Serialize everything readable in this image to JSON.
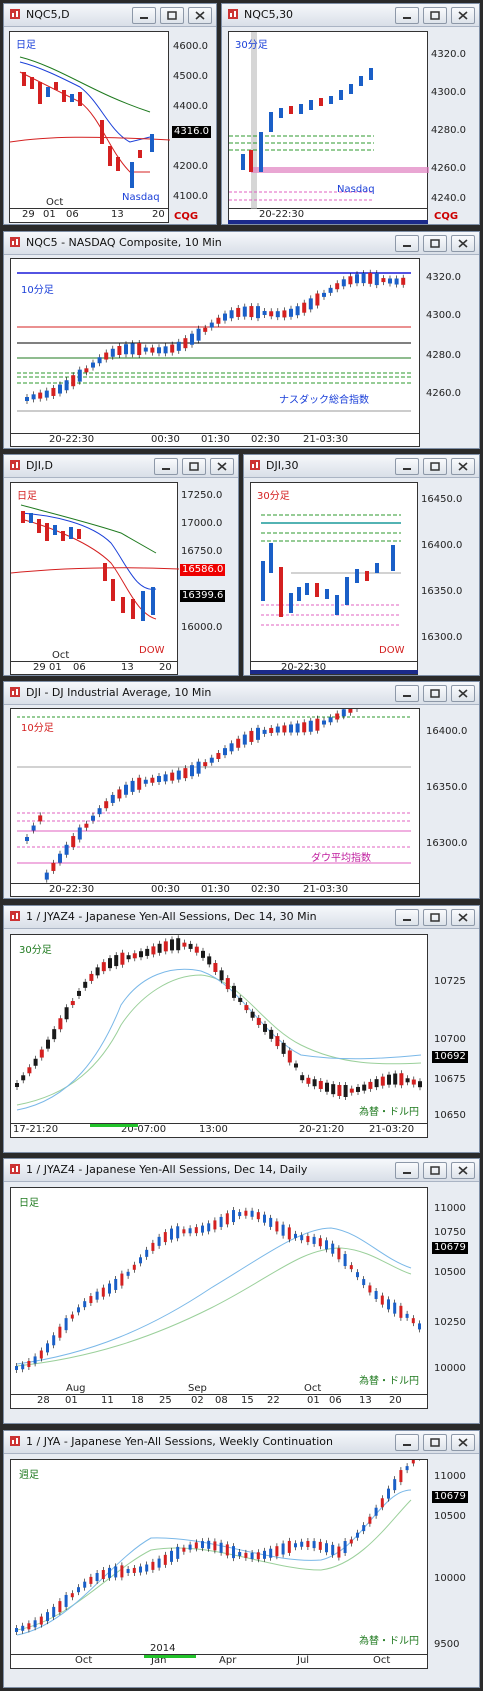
{
  "windows": [
    {
      "id": "w1",
      "title": "NQC5,D",
      "period_label": "日足",
      "series_label": "Nasdaq",
      "y_ticks": [
        "4600.0",
        "4500.0",
        "4400.0",
        "4300.0",
        "4200.0",
        "4100.0"
      ],
      "price_box": "4316.0",
      "x_ticks": [
        "29",
        "01",
        "06",
        "13",
        "20"
      ],
      "month_label": "Oct"
    },
    {
      "id": "w2",
      "title": "NQC5,30",
      "period_label": "30分足",
      "series_label": "Nasdaq",
      "y_ticks": [
        "4320.0",
        "4300.0",
        "4280.0",
        "4260.0",
        "4240.0"
      ],
      "x_ticks": [
        "20-22:30"
      ]
    },
    {
      "id": "w3",
      "title": "NQC5 - NASDAQ Composite, 10 Min",
      "period_label": "10分足",
      "series_label": "ナスダック総合指数",
      "y_ticks": [
        "4320.0",
        "4300.0",
        "4280.0",
        "4260.0"
      ],
      "x_ticks": [
        "20-22:30",
        "00:30",
        "01:30",
        "02:30",
        "21-03:30"
      ]
    },
    {
      "id": "w4",
      "title": "DJI,D",
      "period_label": "日足",
      "series_label": "DOW",
      "y_ticks": [
        "17250.0",
        "17000.0",
        "16750.0",
        "16500.0",
        "16250.0",
        "16000.0"
      ],
      "price_box_red": "16586.0",
      "price_box": "16399.6",
      "x_ticks": [
        "29",
        "01",
        "06",
        "13",
        "20"
      ],
      "month_label": "Oct"
    },
    {
      "id": "w5",
      "title": "DJI,30",
      "period_label": "30分足",
      "series_label": "DOW",
      "y_ticks": [
        "16450.0",
        "16400.0",
        "16350.0",
        "16300.0"
      ],
      "x_ticks": [
        "20-22:30"
      ]
    },
    {
      "id": "w6",
      "title": "DJI - DJ Industrial Average, 10 Min",
      "period_label": "10分足",
      "series_label": "ダウ平均指数",
      "y_ticks": [
        "16400.0",
        "16350.0",
        "16300.0"
      ],
      "x_ticks": [
        "20-22:30",
        "00:30",
        "01:30",
        "02:30",
        "21-03:30"
      ]
    },
    {
      "id": "w7",
      "title": "1 / JYAZ4 - Japanese Yen-All Sessions, Dec 14, 30 Min",
      "period_label": "30分足",
      "series_label": "為替・ドル円",
      "y_ticks": [
        "10725",
        "10700",
        "10675",
        "10650"
      ],
      "price_box": "10692",
      "x_ticks": [
        "17-21:20",
        "20-07:00",
        "13:00",
        "20-21:20",
        "21-03:20"
      ]
    },
    {
      "id": "w8",
      "title": "1 / JYAZ4 - Japanese Yen-All Sessions, Dec 14, Daily",
      "period_label": "日足",
      "series_label": "為替・ドル円",
      "y_ticks": [
        "11000",
        "10750",
        "10500",
        "10250",
        "10000"
      ],
      "price_box": "10679",
      "x_ticks": [
        "28",
        "01",
        "11",
        "18",
        "25",
        "02",
        "08",
        "15",
        "22",
        "01",
        "06",
        "13",
        "20"
      ],
      "month_labels": [
        "Aug",
        "Sep",
        "Oct"
      ]
    },
    {
      "id": "w9",
      "title": "1 / JYA - Japanese Yen-All Sessions, Weekly Continuation",
      "period_label": "週足",
      "series_label": "為替・ドル円",
      "y_ticks": [
        "11000",
        "10500",
        "10000",
        "9500"
      ],
      "price_box": "10679",
      "x_ticks": [
        "Oct",
        "Jan",
        "Apr",
        "Jul",
        "Oct"
      ],
      "year_label": "2014"
    }
  ],
  "logo_text": "CQG",
  "colors": {
    "up": "#1a5fc7",
    "down": "#d42020",
    "ma_fast": "#1a3fd8",
    "ma_slow": "#1f7a1f",
    "ma_mid": "#d42020",
    "accent": "#c00000"
  }
}
